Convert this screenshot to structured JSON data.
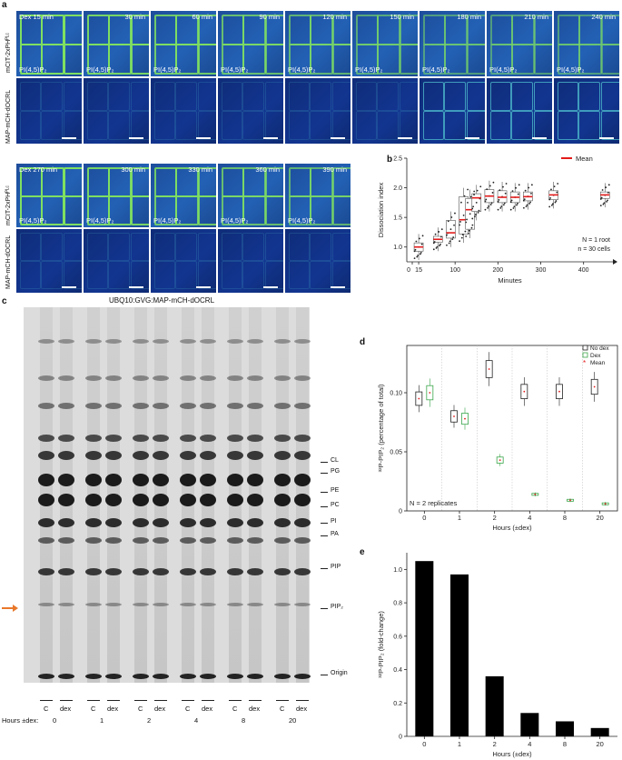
{
  "panel_a": {
    "label": "a",
    "row1_times": [
      "Dex 15 min",
      "30 min",
      "60 min",
      "90 min",
      "120 min",
      "150 min",
      "180 min",
      "210 min",
      "240 min"
    ],
    "row2_times": [
      "Dex 270 min",
      "300 min",
      "330 min",
      "360 min",
      "390 min"
    ],
    "pi_label": "PI(4,5)P₂",
    "channel_top": "mCIT-2xPHᴾᴸᶜ",
    "channel_bottom": "MAP-mCH-dOCRL"
  },
  "panel_b": {
    "label": "b",
    "legend": "Mean",
    "annotation_n": "N = 1 root",
    "annotation_cells": "n = 30 cells"
  },
  "panel_c": {
    "label": "c",
    "title": "UBQ10:GVG:MAP-mCH-dOCRL",
    "lipids": [
      "CL",
      "PG",
      "PE",
      "PC",
      "PI",
      "PA",
      "PIP",
      "PIP₂",
      "Origin"
    ],
    "lane_labels": [
      "C",
      "dex"
    ],
    "hours_label": "Hours ±dex:",
    "hours": [
      "0",
      "1",
      "2",
      "4",
      "8",
      "20"
    ]
  },
  "panel_d": {
    "label": "d",
    "legend": [
      "No dex",
      "Dex",
      "Mean"
    ],
    "annotation": "N = 2 replicates"
  },
  "panel_e": {
    "label": "e"
  },
  "chart_data": [
    {
      "type": "scatter",
      "xlabel": "Minutes",
      "ylabel": "Dissociation index",
      "x_ticks": [
        "0",
        "15",
        "100",
        "200",
        "300",
        "400"
      ],
      "ylim": [
        0.75,
        2.5
      ],
      "y_ticks": [
        1.0,
        1.5,
        2.0,
        2.5
      ],
      "x": [
        15,
        60,
        90,
        120,
        135,
        150,
        180,
        210,
        240,
        270,
        330,
        450
      ],
      "means": [
        1.0,
        1.13,
        1.24,
        1.46,
        1.63,
        1.83,
        1.86,
        1.84,
        1.84,
        1.85,
        1.88,
        1.88
      ],
      "box_q1": [
        0.93,
        1.08,
        1.15,
        1.22,
        1.3,
        1.6,
        1.75,
        1.75,
        1.75,
        1.78,
        1.8,
        1.82
      ],
      "box_q3": [
        1.07,
        1.18,
        1.45,
        1.85,
        1.82,
        1.9,
        1.97,
        1.95,
        1.93,
        1.93,
        1.95,
        1.93
      ]
    },
    {
      "type": "bar",
      "xlabel": "Hours (±dex)",
      "ylabel": "³²P-PIP₂ (percentage of total)",
      "categories": [
        "0",
        "1",
        "2",
        "4",
        "8",
        "20"
      ],
      "ylim": [
        0,
        0.14
      ],
      "y_ticks": [
        "0",
        "0.05",
        "0.10"
      ],
      "series": [
        {
          "name": "No dex",
          "values": [
            0.095,
            0.08,
            0.12,
            0.101,
            0.101,
            0.105
          ]
        },
        {
          "name": "Dex",
          "values": [
            0.1,
            0.078,
            0.043,
            0.014,
            0.009,
            0.006
          ]
        }
      ]
    },
    {
      "type": "bar",
      "xlabel": "Hours (±dex)",
      "ylabel": "³²P-PIP₂ (fold-change)",
      "categories": [
        "0",
        "1",
        "2",
        "4",
        "8",
        "20"
      ],
      "values": [
        1.05,
        0.97,
        0.36,
        0.14,
        0.09,
        0.05
      ],
      "ylim": [
        0,
        1.1
      ],
      "y_ticks": [
        "0",
        "0.2",
        "0.4",
        "0.6",
        "0.8",
        "1.0"
      ]
    }
  ]
}
